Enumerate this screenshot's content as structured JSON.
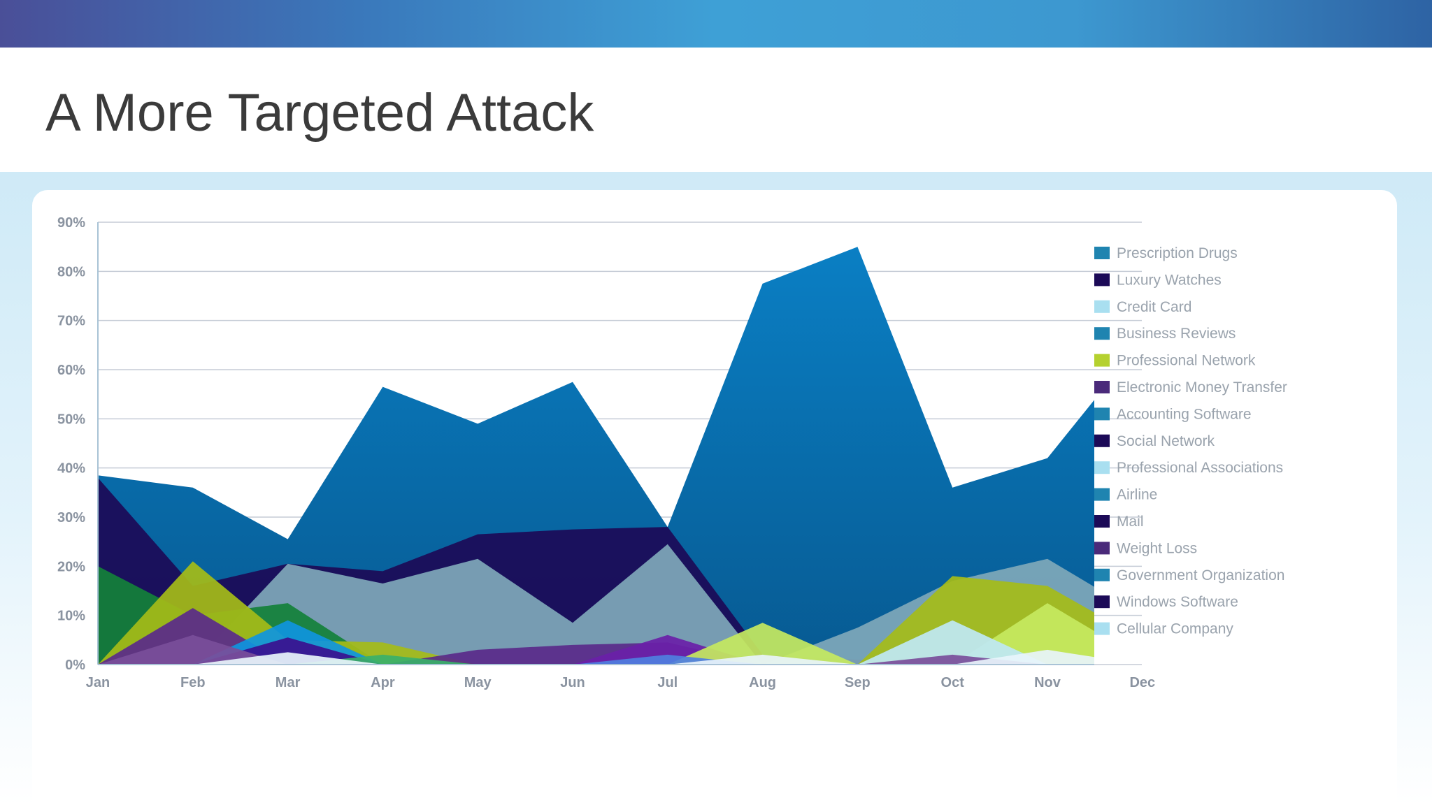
{
  "slide": {
    "title": "A More Targeted Attack"
  },
  "colors": {
    "band_start": "#4a4f98",
    "band_mid": "#3ea0d6",
    "band_end": "#2e63a4",
    "title_text": "#3b3b3b",
    "gridline": "#c5ccd6",
    "axis_text": "#8a93a0",
    "legend_text": "#9aa3ad"
  },
  "chart_data": {
    "type": "area",
    "title": "",
    "xlabel": "",
    "ylabel": "",
    "categories": [
      "Jan",
      "Feb",
      "Mar",
      "Apr",
      "May",
      "Jun",
      "Jul",
      "Aug",
      "Sep",
      "Oct",
      "Nov",
      "Dec"
    ],
    "ylim": [
      0,
      90
    ],
    "yticks": [
      "0%",
      "10%",
      "20%",
      "30%",
      "40%",
      "50%",
      "60%",
      "70%",
      "80%",
      "90%"
    ],
    "grid": true,
    "legend_position": "right",
    "series": [
      {
        "name": "Prescription Drugs",
        "color": "#0b6fae",
        "values": [
          38.5,
          36,
          25.5,
          56.5,
          49,
          57.5,
          28,
          77.5,
          85,
          36,
          42,
          66
        ]
      },
      {
        "name": "Luxury Watches",
        "color": "#1c0a57",
        "values": [
          38,
          16,
          20.5,
          19,
          26.5,
          27.5,
          28,
          2,
          1,
          1,
          1,
          1
        ]
      },
      {
        "name": "Credit Card",
        "color": "#7fa8ba",
        "values": [
          0,
          0,
          20.5,
          16.5,
          21.5,
          8.5,
          24.5,
          0,
          7.5,
          17,
          21.5,
          10
        ]
      },
      {
        "name": "Business Reviews",
        "color": "#13813a",
        "values": [
          20,
          10,
          12.5,
          0,
          0,
          0,
          0,
          0,
          0,
          0,
          0,
          0
        ]
      },
      {
        "name": "Professional Network",
        "color": "#a5bc18",
        "values": [
          0,
          21,
          5,
          4.5,
          0,
          0,
          0,
          0,
          0,
          18,
          16,
          5
        ]
      },
      {
        "name": "Electronic Money Transfer",
        "color": "#5a2a8a",
        "values": [
          0,
          11.5,
          0,
          0,
          3,
          4,
          4.5,
          0,
          0,
          0,
          0,
          0
        ]
      },
      {
        "name": "Accounting Software",
        "color": "#0f95de",
        "values": [
          0,
          0,
          9,
          0,
          0,
          0,
          0,
          0,
          0,
          0,
          0,
          0
        ]
      },
      {
        "name": "Social Network",
        "color": "#6a1fa8",
        "values": [
          0,
          0,
          0,
          0,
          0,
          0,
          6,
          0,
          0,
          0,
          0,
          0
        ]
      },
      {
        "name": "Professional Associations",
        "color": "#c6e95f",
        "values": [
          0,
          0,
          0,
          0,
          0,
          0,
          0,
          8.5,
          0,
          0,
          12.5,
          1
        ]
      },
      {
        "name": "Airline",
        "color": "#bfe8f4",
        "values": [
          0,
          0,
          0,
          0,
          0,
          0,
          0,
          0,
          0,
          9,
          0,
          0
        ]
      },
      {
        "name": "Mail",
        "color": "#3a108f",
        "values": [
          0,
          0,
          5.5,
          0,
          0,
          0,
          0,
          0,
          0,
          0,
          0,
          0
        ]
      },
      {
        "name": "Weight Loss",
        "color": "#7a4e9a",
        "values": [
          0,
          6,
          0,
          0,
          0,
          0,
          0,
          0,
          0,
          2,
          0,
          0
        ]
      },
      {
        "name": "Government Organization",
        "color": "#3ab06a",
        "values": [
          0,
          0,
          0,
          2,
          0,
          0,
          0,
          0,
          0,
          0,
          0,
          0
        ]
      },
      {
        "name": "Windows Software",
        "color": "#4f7fe0",
        "values": [
          0,
          0,
          0,
          0,
          0,
          0,
          2,
          0,
          0,
          0,
          0,
          0
        ]
      },
      {
        "name": "Cellular Company",
        "color": "#e8f4fb",
        "values": [
          0,
          0,
          2.5,
          0,
          0,
          0,
          0,
          2,
          0,
          0,
          3,
          0
        ]
      }
    ],
    "legend_swatches": [
      {
        "name": "Prescription Drugs",
        "color": "#1f84b0"
      },
      {
        "name": "Luxury Watches",
        "color": "#1c0a57"
      },
      {
        "name": "Credit Card",
        "color": "#a9dff0"
      },
      {
        "name": "Business Reviews",
        "color": "#1f84b0"
      },
      {
        "name": "Professional Network",
        "color": "#b5d12f"
      },
      {
        "name": "Electronic Money Transfer",
        "color": "#4a2a7a"
      },
      {
        "name": "Accounting Software",
        "color": "#1f84b0"
      },
      {
        "name": "Social Network",
        "color": "#1c0a57"
      },
      {
        "name": "Professional Associations",
        "color": "#a9dff0"
      },
      {
        "name": "Airline",
        "color": "#1f84b0"
      },
      {
        "name": "Mail",
        "color": "#1c0a57"
      },
      {
        "name": "Weight Loss",
        "color": "#4a2a7a"
      },
      {
        "name": "Government Organization",
        "color": "#1f84b0"
      },
      {
        "name": "Windows Software",
        "color": "#1c0a57"
      },
      {
        "name": "Cellular Company",
        "color": "#a9dff0"
      }
    ]
  }
}
